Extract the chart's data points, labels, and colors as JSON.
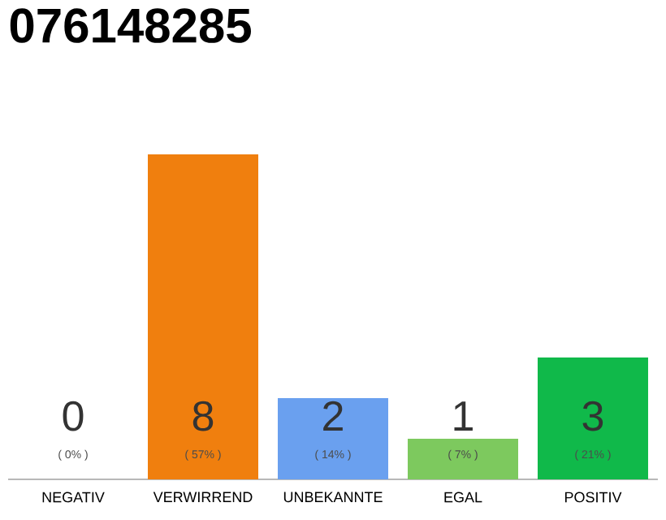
{
  "chart_data": {
    "type": "bar",
    "title": "076148285",
    "categories": [
      "NEGATIV",
      "VERWIRREND",
      "UNBEKANNTE",
      "EGAL",
      "POSITIV"
    ],
    "values": [
      0,
      8,
      2,
      1,
      3
    ],
    "colors": [
      "#b0b0b0",
      "#f07f0e",
      "#6aa0ef",
      "#7dc95e",
      "#10b94a"
    ],
    "ylim": [
      0,
      8
    ],
    "tick_labels": "x",
    "grid": false,
    "data_labels": true,
    "annotations": [
      "( 0% )",
      "( 57% )",
      "( 14% )",
      "( 7% )",
      "( 21% )"
    ]
  }
}
